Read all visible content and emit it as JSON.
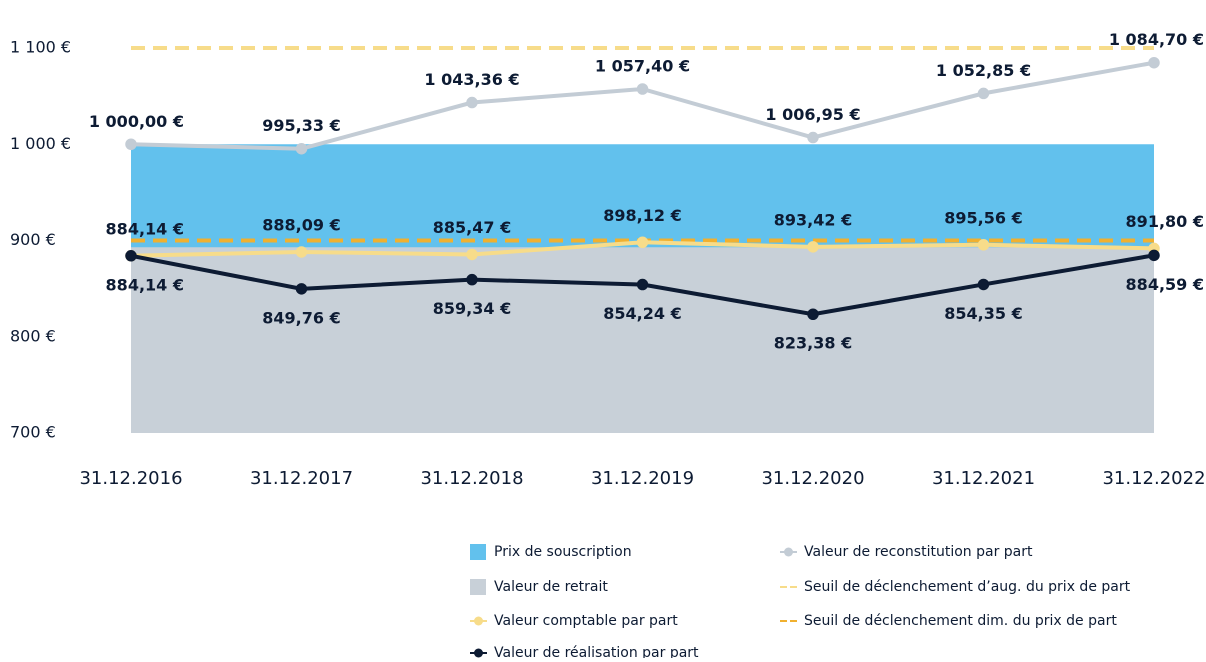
{
  "chart_data": {
    "type": "line",
    "categories": [
      "31.12.2016",
      "31.12.2017",
      "31.12.2018",
      "31.12.2019",
      "31.12.2020",
      "31.12.2021",
      "31.12.2022"
    ],
    "ylim": [
      700,
      1100
    ],
    "yticks": [
      {
        "value": 700,
        "label": "700 €"
      },
      {
        "value": 800,
        "label": "800 €"
      },
      {
        "value": 900,
        "label": "900 €"
      },
      {
        "value": 1000,
        "label": "1 000 €"
      },
      {
        "value": 1100,
        "label": "1 100 €"
      }
    ],
    "series": [
      {
        "name": "Prix de souscription",
        "kind": "area",
        "color": "#62c1ed",
        "values": [
          1000,
          1000,
          1000,
          1000,
          1000,
          1000,
          1000
        ]
      },
      {
        "name": "Valeur de retrait",
        "kind": "area",
        "color": "#c8d0d8",
        "values": [
          893,
          893,
          893,
          893,
          893,
          893,
          893
        ]
      },
      {
        "name": "Valeur comptable par part",
        "kind": "line",
        "color": "#f7dc8a",
        "values": [
          884.14,
          888.09,
          885.47,
          898.12,
          893.42,
          895.56,
          891.8
        ],
        "value_labels": [
          "884,14 €",
          "888,09 €",
          "885,47 €",
          "898,12 €",
          "893,42 €",
          "895,56 €",
          "891,80 €"
        ]
      },
      {
        "name": "Valeur de réalisation par part",
        "kind": "line",
        "color": "#0d1b33",
        "values": [
          884.14,
          849.76,
          859.34,
          854.24,
          823.38,
          854.35,
          884.59
        ],
        "value_labels": [
          "884,14 €",
          "849,76 €",
          "859,34 €",
          "854,24 €",
          "823,38 €",
          "854,35 €",
          "884,59 €"
        ]
      },
      {
        "name": "Valeur de reconstitution par part",
        "kind": "line",
        "color": "#c3ccd5",
        "values": [
          1000.0,
          995.33,
          1043.36,
          1057.4,
          1006.95,
          1052.85,
          1084.7
        ],
        "value_labels": [
          "1 000,00 €",
          "995,33 €",
          "1 043,36 €",
          "1 057,40 €",
          "1 006,95 €",
          "1 052,85 €",
          "1 084,70 €"
        ]
      },
      {
        "name": "Seuil de déclenchement d’aug. du prix de part",
        "kind": "dashed",
        "color": "#f7dc8a",
        "values": [
          1100,
          1100,
          1100,
          1100,
          1100,
          1100,
          1100
        ]
      },
      {
        "name": "Seuil de déclenchement dim. du prix de part",
        "kind": "dashed",
        "color": "#f0b030",
        "values": [
          900,
          900,
          900,
          900,
          900,
          900,
          900
        ]
      }
    ]
  }
}
